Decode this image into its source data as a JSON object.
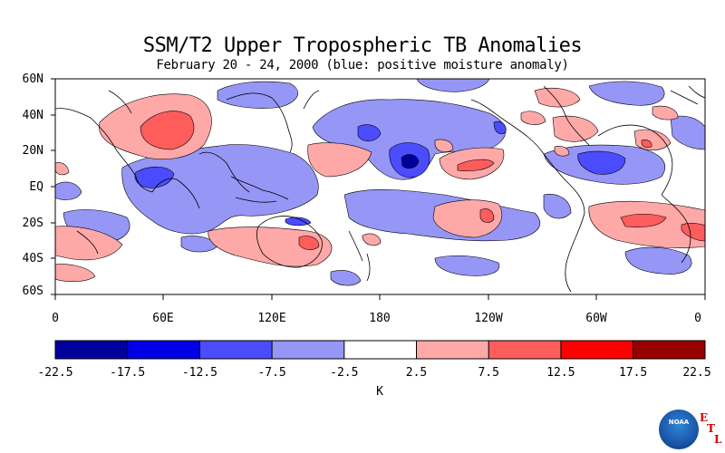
{
  "title": "SSM/T2 Upper Tropospheric TB Anomalies",
  "subtitle": "February 20 - 24, 2000 (blue: positive moisture anomaly)",
  "lat_labels": [
    "60N",
    "40N",
    "20N",
    "EQ",
    "20S",
    "40S",
    "60S"
  ],
  "lon_labels": [
    "0",
    "60E",
    "120E",
    "180",
    "120W",
    "60W",
    "0"
  ],
  "colorbar": {
    "labels": [
      "-22.5",
      "-17.5",
      "-12.5",
      "-7.5",
      "-2.5",
      "2.5",
      "7.5",
      "12.5",
      "17.5",
      "22.5"
    ],
    "colors": [
      "#00009c",
      "#0000e6",
      "#4b4bff",
      "#9696f7",
      "#ffffff",
      "#ffa8a8",
      "#ff5c5c",
      "#ff0000",
      "#960000"
    ],
    "units": "K"
  },
  "logo": {
    "agency": "NOAA",
    "lab": [
      "E",
      "T",
      "L"
    ]
  }
}
